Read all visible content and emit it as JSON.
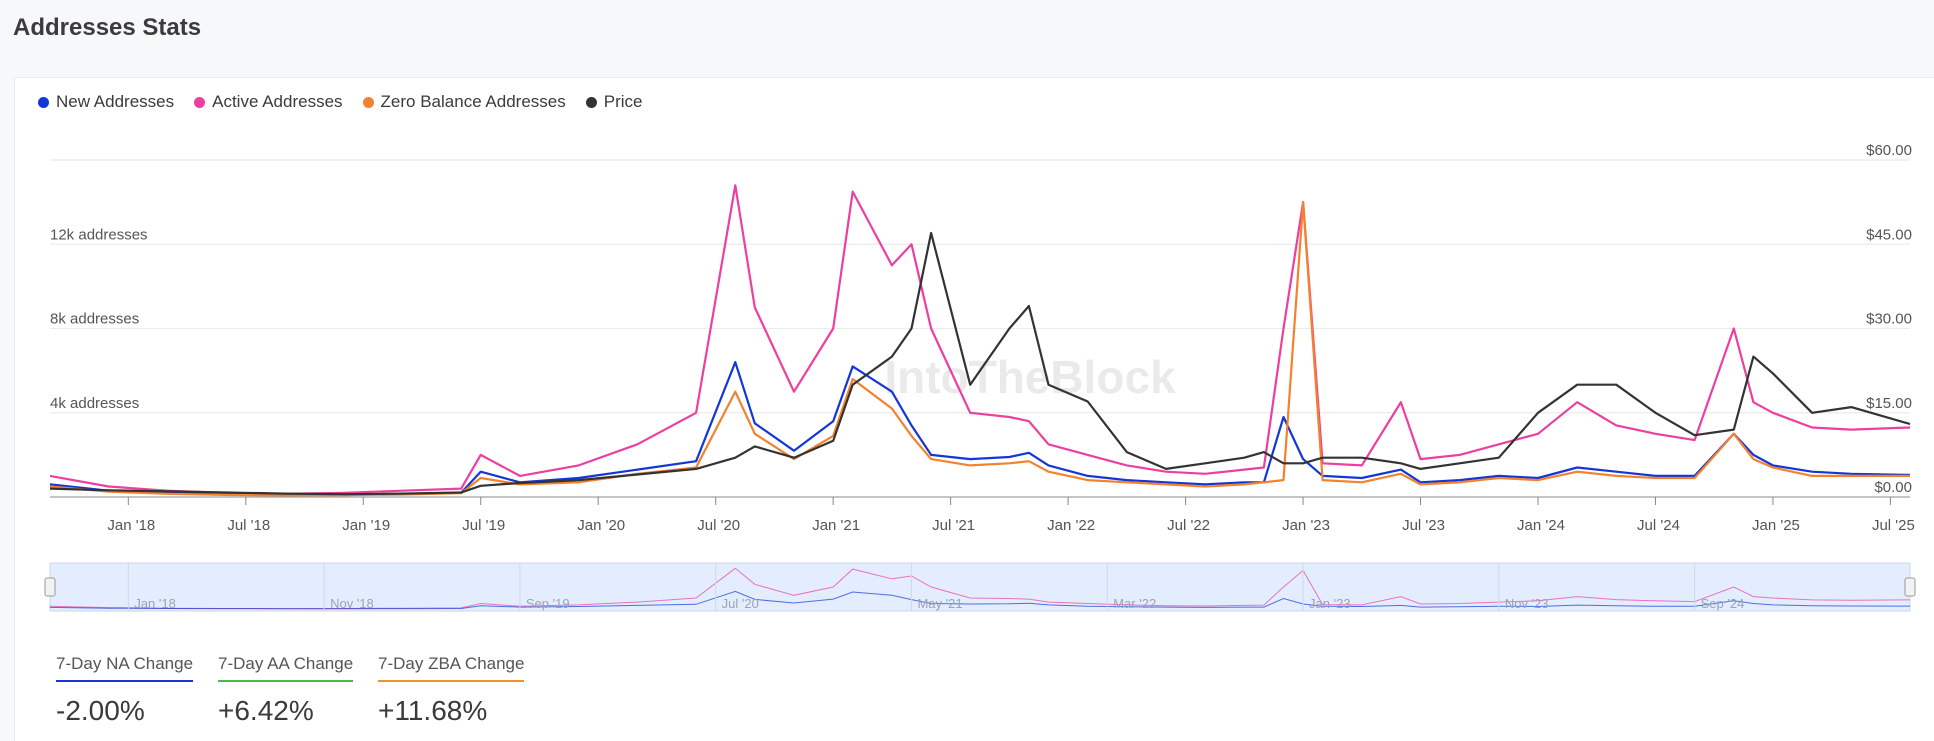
{
  "page": {
    "title": "Addresses Stats"
  },
  "legend": [
    {
      "label": "New Addresses",
      "color": "#1337d6"
    },
    {
      "label": "Active Addresses",
      "color": "#ec3f9f"
    },
    {
      "label": "Zero Balance Addresses",
      "color": "#f4812c"
    },
    {
      "label": "Price",
      "color": "#333333"
    }
  ],
  "watermark": "IntoTheBlock",
  "kpis": [
    {
      "label": "7-Day NA Change",
      "value": "-2.00%",
      "color": "#1337d6"
    },
    {
      "label": "7-Day AA Change",
      "value": "+6.42%",
      "color": "#4cb84c"
    },
    {
      "label": "7-Day ZBA Change",
      "value": "+11.68%",
      "color": "#f4912c"
    }
  ],
  "chart_data": {
    "type": "line",
    "x_axis": {
      "tick_labels": [
        "Jan '18",
        "Jul '18",
        "Jan '19",
        "Jul '19",
        "Jan '20",
        "Jul '20",
        "Jan '21",
        "Jul '21",
        "Jan '22",
        "Jul '22",
        "Jan '23",
        "Jul '23",
        "Jan '24",
        "Jul '24",
        "Jan '25",
        "Jul '25"
      ],
      "range": [
        "2017-09",
        "2025-08"
      ]
    },
    "y_left": {
      "tick_labels": [
        "4k addresses",
        "8k addresses",
        "12k addresses"
      ],
      "tick_values": [
        4000,
        8000,
        12000
      ],
      "range": [
        0,
        16000
      ]
    },
    "y_right": {
      "tick_labels": [
        "$0.00",
        "$15.00",
        "$30.00",
        "$45.00",
        "$60.00"
      ],
      "tick_values": [
        0,
        15,
        30,
        45,
        60
      ],
      "range": [
        0,
        60
      ]
    },
    "grid": true,
    "legend_position": "top-left",
    "navigator": {
      "tick_labels": [
        "Jan '18",
        "Nov '18",
        "Sep '19",
        "Jul '20",
        "May '21",
        "Mar '22",
        "Jan '23",
        "Nov '23",
        "Sep '24"
      ]
    },
    "x": [
      "2017-09",
      "2017-12",
      "2018-03",
      "2018-06",
      "2018-09",
      "2018-12",
      "2019-03",
      "2019-06",
      "2019-07",
      "2019-09",
      "2019-12",
      "2020-03",
      "2020-06",
      "2020-08",
      "2020-09",
      "2020-11",
      "2021-01",
      "2021-02",
      "2021-04",
      "2021-05",
      "2021-06",
      "2021-08",
      "2021-10",
      "2021-11",
      "2021-12",
      "2022-02",
      "2022-04",
      "2022-06",
      "2022-08",
      "2022-10",
      "2022-11",
      "2022-12",
      "2023-01",
      "2023-02",
      "2023-04",
      "2023-06",
      "2023-07",
      "2023-09",
      "2023-11",
      "2024-01",
      "2024-03",
      "2024-05",
      "2024-07",
      "2024-09",
      "2024-11",
      "2024-12",
      "2025-01",
      "2025-03",
      "2025-05",
      "2025-08"
    ],
    "series": [
      {
        "name": "Active Addresses",
        "axis": "left",
        "color": "#ec3f9f",
        "values": [
          1000,
          500,
          300,
          200,
          150,
          200,
          300,
          400,
          2000,
          1000,
          1500,
          2500,
          4000,
          14800,
          9000,
          5000,
          8000,
          14500,
          11000,
          12000,
          8000,
          4000,
          3800,
          3600,
          2500,
          2000,
          1500,
          1200,
          1100,
          1300,
          1400,
          8000,
          14000,
          1600,
          1500,
          4500,
          1800,
          2000,
          2500,
          3000,
          4500,
          3400,
          3000,
          2700,
          8000,
          4500,
          4000,
          3300,
          3200,
          3300
        ]
      },
      {
        "name": "New Addresses",
        "axis": "left",
        "color": "#1337d6",
        "values": [
          600,
          300,
          200,
          150,
          100,
          100,
          150,
          200,
          1200,
          700,
          900,
          1300,
          1700,
          6400,
          3500,
          2200,
          3600,
          6200,
          5000,
          3400,
          2000,
          1800,
          1900,
          2100,
          1500,
          1000,
          800,
          700,
          600,
          700,
          700,
          3800,
          1800,
          1000,
          900,
          1300,
          700,
          800,
          1000,
          900,
          1400,
          1200,
          1000,
          1000,
          3000,
          2000,
          1500,
          1200,
          1100,
          1050
        ]
      },
      {
        "name": "Zero Balance Addresses",
        "axis": "left",
        "color": "#f4812c",
        "values": [
          500,
          250,
          150,
          100,
          80,
          90,
          120,
          180,
          900,
          600,
          700,
          1100,
          1400,
          5000,
          3000,
          1800,
          2900,
          5600,
          4200,
          2900,
          1800,
          1500,
          1600,
          1700,
          1200,
          800,
          700,
          600,
          500,
          600,
          700,
          800,
          14000,
          800,
          700,
          1100,
          600,
          700,
          900,
          800,
          1200,
          1000,
          900,
          900,
          3000,
          1800,
          1400,
          1000,
          1000,
          1000
        ]
      },
      {
        "name": "Price",
        "axis": "right",
        "color": "#333333",
        "values": [
          1.5,
          1.2,
          1.0,
          0.8,
          0.6,
          0.5,
          0.6,
          0.8,
          2.0,
          2.5,
          3.0,
          4.0,
          5.0,
          7.0,
          9.0,
          7.0,
          10.0,
          20.0,
          25.0,
          30.0,
          47.0,
          20.0,
          30.0,
          34.0,
          20.0,
          17.0,
          8.0,
          5.0,
          6.0,
          7.0,
          8.0,
          6.0,
          6.0,
          7.0,
          7.0,
          6.0,
          5.0,
          6.0,
          7.0,
          15.0,
          20.0,
          20.0,
          15.0,
          11.0,
          12.0,
          25.0,
          22.0,
          15.0,
          16.0,
          13.0
        ]
      }
    ]
  }
}
